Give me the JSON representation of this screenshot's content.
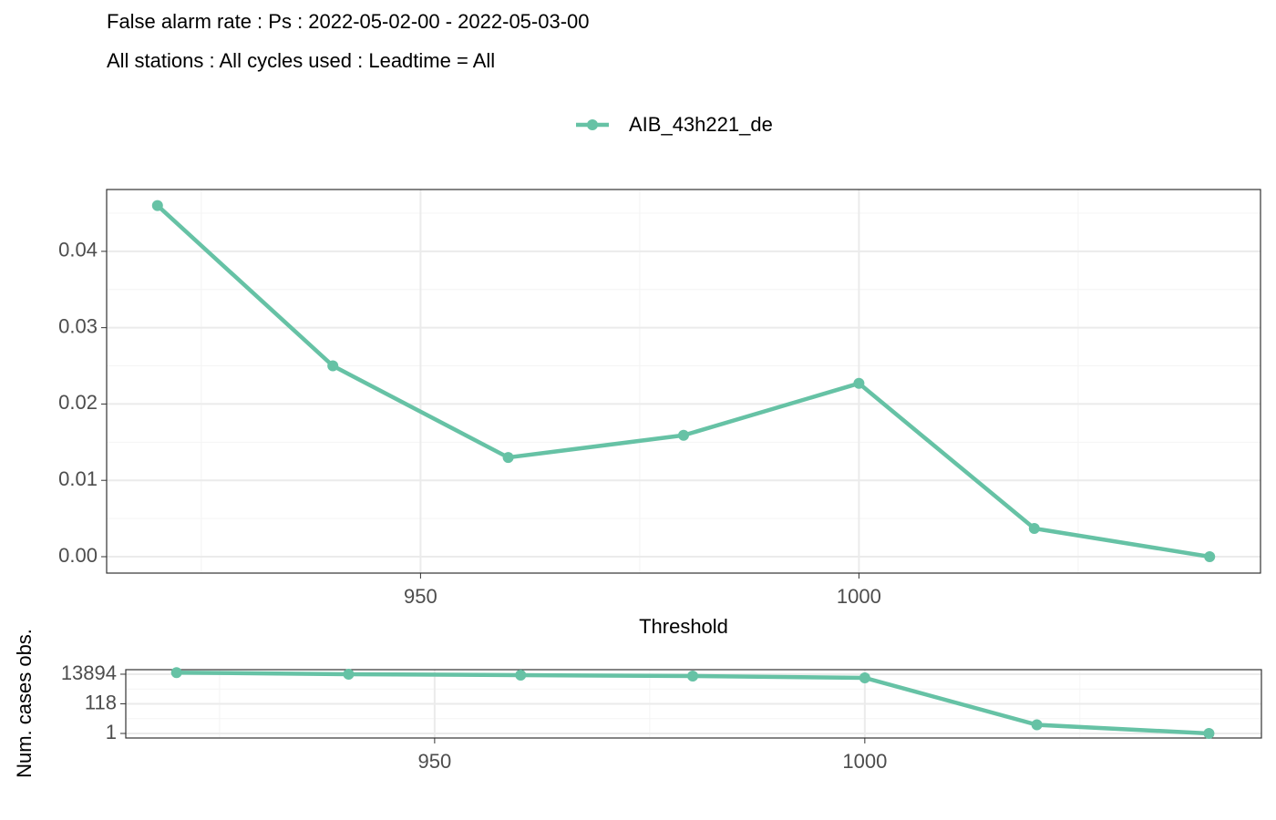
{
  "chart_data": [
    {
      "type": "line",
      "title": "False alarm rate : Ps : 2022-05-02-00 - 2022-05-03-00",
      "subtitle": "All stations : All cycles used : Leadtime = All",
      "xlabel": "Threshold",
      "x": [
        920,
        940,
        960,
        980,
        1000,
        1020,
        1040
      ],
      "series": [
        {
          "name": "AIB_43h221_de",
          "color": "#66c2a5",
          "values": [
            0.046,
            0.025,
            0.013,
            0.0159,
            0.0227,
            0.0037,
            0
          ]
        }
      ],
      "xlim": [
        914.2,
        1045.8
      ],
      "xticks": [
        950,
        1000
      ],
      "ylim": [
        -0.00215,
        0.0481
      ],
      "yticks": [
        {
          "value": 0,
          "label": "0.00"
        },
        {
          "value": 0.01,
          "label": "0.01"
        },
        {
          "value": 0.02,
          "label": "0.02"
        },
        {
          "value": 0.03,
          "label": "0.03"
        },
        {
          "value": 0.04,
          "label": "0.04"
        }
      ],
      "grid": true,
      "legend": "top"
    },
    {
      "type": "line",
      "ylabel": "Num. cases obs.",
      "x": [
        920,
        940,
        960,
        980,
        1000,
        1020,
        1040
      ],
      "series": [
        {
          "color": "#66c2a5",
          "values": [
            18000,
            13894,
            12000,
            10300,
            7700,
            4,
            1
          ]
        }
      ],
      "xlim": [
        914.1,
        1046.1
      ],
      "xticks": [
        950,
        1000
      ],
      "ylim": [
        0.48,
        28800
      ],
      "yticks": [
        1,
        118,
        13894
      ],
      "ylog": true,
      "grid": true
    }
  ]
}
